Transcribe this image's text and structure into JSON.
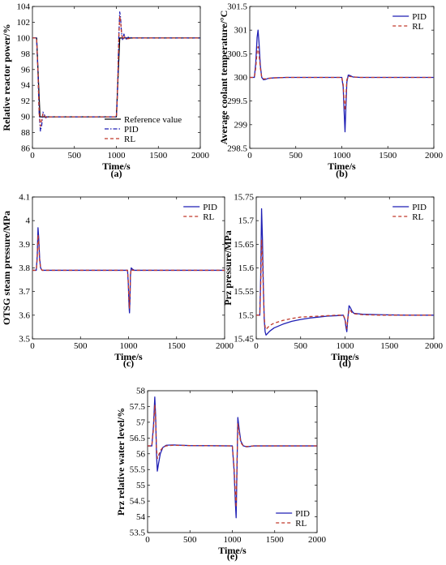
{
  "figure": {
    "panels": [
      {
        "id": "a",
        "panel_label": "(a)",
        "type": "line",
        "xlabel": "Time/s",
        "ylabel": "Relative reactor power/%",
        "xlim": [
          0,
          2000
        ],
        "ylim": [
          86,
          104
        ],
        "xticks": [
          0,
          500,
          1000,
          1500,
          2000
        ],
        "yticks": [
          86,
          88,
          90,
          92,
          94,
          96,
          98,
          100,
          102,
          104
        ],
        "ytick_decimals": 0,
        "legend": "bottom-right",
        "series": [
          {
            "name": "Reference value",
            "color": "#000000",
            "dash": "none",
            "width": 1.3,
            "x": [
              0,
              50,
              90,
              1000,
              1040,
              2000
            ],
            "y": [
              100,
              100,
              90,
              90,
              100,
              100
            ]
          },
          {
            "name": "PID",
            "color": "#1f1fb4",
            "dash": "5,2,1.5,2",
            "width": 1.3,
            "x": [
              0,
              50,
              65,
              80,
              95,
              110,
              125,
              140,
              160,
              180,
              220,
              300,
              1000,
              1010,
              1020,
              1030,
              1040,
              1050,
              1060,
              1075,
              1090,
              1110,
              1140,
              1200,
              1400,
              2000
            ],
            "y": [
              100,
              100,
              96,
              90.5,
              88.2,
              88.9,
              90.6,
              90.3,
              89.8,
              90.0,
              90.0,
              90.0,
              90.0,
              92.0,
              96.0,
              100.5,
              103.3,
              102.6,
              100.8,
              99.7,
              100.5,
              99.8,
              100.1,
              100.0,
              100.0,
              100.0
            ]
          },
          {
            "name": "RL",
            "color": "#c0392b",
            "dash": "4,3",
            "width": 1.3,
            "x": [
              0,
              50,
              65,
              80,
              95,
              110,
              125,
              145,
              170,
              220,
              300,
              1000,
              1010,
              1020,
              1030,
              1040,
              1050,
              1065,
              1080,
              1100,
              1130,
              1200,
              1400,
              2000
            ],
            "y": [
              100,
              100,
              96,
              90.5,
              88.8,
              89.6,
              90.4,
              90.1,
              89.9,
              90.0,
              90.0,
              90.0,
              92.0,
              96.0,
              100.3,
              102.8,
              102.1,
              100.3,
              99.8,
              100.2,
              99.9,
              100.0,
              100.0,
              100.0
            ]
          }
        ]
      },
      {
        "id": "b",
        "panel_label": "(b)",
        "type": "line",
        "xlabel": "Time/s",
        "ylabel": "Average coolant temperature/°C",
        "xlim": [
          0,
          2000
        ],
        "ylim": [
          298.5,
          301.5
        ],
        "xticks": [
          0,
          500,
          1000,
          1500,
          2000
        ],
        "yticks": [
          298.5,
          299,
          299.5,
          300,
          300.5,
          301,
          301.5
        ],
        "ytick_decimals": -1,
        "legend": "top-right",
        "series": [
          {
            "name": "PID",
            "color": "#1f1fb4",
            "dash": "none",
            "width": 1.3,
            "x": [
              0,
              50,
              65,
              80,
              90,
              100,
              115,
              130,
              150,
              175,
              200,
              260,
              400,
              1000,
              1015,
              1025,
              1035,
              1045,
              1055,
              1070,
              1090,
              1120,
              1200,
              1400,
              2000
            ],
            "y": [
              300,
              300,
              300.3,
              300.85,
              301.0,
              300.75,
              300.25,
              300.0,
              299.95,
              299.96,
              299.98,
              299.99,
              300.0,
              300.0,
              299.8,
              299.3,
              298.85,
              299.4,
              299.9,
              300.05,
              300.04,
              300.01,
              300.0,
              300.0,
              300.0
            ]
          },
          {
            "name": "RL",
            "color": "#c0392b",
            "dash": "4,3",
            "width": 1.3,
            "x": [
              0,
              50,
              65,
              80,
              90,
              100,
              115,
              130,
              150,
              175,
              200,
              260,
              400,
              1000,
              1015,
              1025,
              1035,
              1045,
              1055,
              1070,
              1090,
              1120,
              1200,
              1400,
              2000
            ],
            "y": [
              300,
              300,
              300.2,
              300.55,
              300.65,
              300.5,
              300.2,
              300.0,
              299.97,
              299.97,
              299.98,
              299.99,
              300.0,
              300.0,
              299.85,
              299.5,
              299.3,
              299.6,
              299.95,
              300.03,
              300.02,
              300.01,
              300.0,
              300.0,
              300.0
            ]
          }
        ]
      },
      {
        "id": "c",
        "panel_label": "(c)",
        "type": "line",
        "xlabel": "Time/s",
        "ylabel": "OTSG steam pressure/MPa",
        "xlim": [
          0,
          2000
        ],
        "ylim": [
          3.5,
          4.1
        ],
        "xticks": [
          0,
          500,
          1000,
          1500,
          2000
        ],
        "yticks": [
          3.5,
          3.6,
          3.7,
          3.8,
          3.9,
          4.0,
          4.1
        ],
        "ytick_decimals": -1,
        "legend": "top-right",
        "series": [
          {
            "name": "PID",
            "color": "#1f1fb4",
            "dash": "none",
            "width": 1.3,
            "x": [
              0,
              40,
              50,
              58,
              65,
              75,
              85,
              100,
              120,
              200,
              400,
              990,
              998,
              1005,
              1010,
              1015,
              1020,
              1028,
              1040,
              1060,
              1100,
              2000
            ],
            "y": [
              3.79,
              3.79,
              3.85,
              3.97,
              3.93,
              3.84,
              3.8,
              3.79,
              3.79,
              3.79,
              3.79,
              3.79,
              3.73,
              3.64,
              3.61,
              3.66,
              3.77,
              3.8,
              3.795,
              3.79,
              3.79,
              3.79
            ]
          },
          {
            "name": "RL",
            "color": "#c0392b",
            "dash": "4,3",
            "width": 1.3,
            "x": [
              0,
              40,
              50,
              58,
              65,
              75,
              85,
              100,
              120,
              200,
              400,
              990,
              998,
              1005,
              1010,
              1015,
              1020,
              1028,
              1040,
              1060,
              1100,
              2000
            ],
            "y": [
              3.79,
              3.79,
              3.84,
              3.94,
              3.91,
              3.83,
              3.8,
              3.79,
              3.79,
              3.79,
              3.79,
              3.79,
              3.74,
              3.66,
              3.63,
              3.68,
              3.77,
              3.795,
              3.79,
              3.79,
              3.79,
              3.79
            ]
          }
        ]
      },
      {
        "id": "d",
        "panel_label": "(d)",
        "type": "line",
        "xlabel": "Time/s",
        "ylabel": "Prz pressure/MPa",
        "xlim": [
          0,
          2000
        ],
        "ylim": [
          15.45,
          15.75
        ],
        "xticks": [
          0,
          500,
          1000,
          1500,
          2000
        ],
        "yticks": [
          15.45,
          15.5,
          15.55,
          15.6,
          15.65,
          15.7,
          15.75
        ],
        "ytick_decimals": -1,
        "legend": "top-right",
        "series": [
          {
            "name": "PID",
            "color": "#1f1fb4",
            "dash": "none",
            "width": 1.3,
            "x": [
              0,
              40,
              50,
              60,
              70,
              80,
              90,
              100,
              110,
              120,
              150,
              200,
              300,
              400,
              500,
              600,
              700,
              800,
              900,
              980,
              1000,
              1010,
              1020,
              1030,
              1045,
              1060,
              1080,
              1100,
              1200,
              1400,
              1700,
              2000
            ],
            "y": [
              15.5,
              15.5,
              15.58,
              15.725,
              15.66,
              15.56,
              15.49,
              15.465,
              15.458,
              15.46,
              15.466,
              15.473,
              15.481,
              15.487,
              15.491,
              15.494,
              15.496,
              15.498,
              15.499,
              15.5,
              15.49,
              15.475,
              15.465,
              15.49,
              15.52,
              15.516,
              15.508,
              15.504,
              15.502,
              15.501,
              15.5,
              15.5
            ]
          },
          {
            "name": "RL",
            "color": "#c0392b",
            "dash": "4,3",
            "width": 1.3,
            "x": [
              0,
              40,
              50,
              60,
              70,
              80,
              90,
              100,
              110,
              120,
              150,
              200,
              300,
              400,
              500,
              600,
              700,
              800,
              900,
              980,
              1000,
              1010,
              1020,
              1030,
              1045,
              1060,
              1080,
              1100,
              1200,
              1400,
              1700,
              2000
            ],
            "y": [
              15.5,
              15.5,
              15.56,
              15.66,
              15.62,
              15.55,
              15.495,
              15.475,
              15.47,
              15.472,
              15.478,
              15.483,
              15.489,
              15.493,
              15.496,
              15.497,
              15.498,
              15.499,
              15.5,
              15.5,
              15.492,
              15.48,
              15.472,
              15.49,
              15.512,
              15.51,
              15.505,
              15.503,
              15.501,
              15.5,
              15.5,
              15.5
            ]
          }
        ]
      },
      {
        "id": "e",
        "panel_label": "(e)",
        "type": "line",
        "xlabel": "Time/s",
        "ylabel": "Prz relative water level/%",
        "xlim": [
          0,
          2000
        ],
        "ylim": [
          53.5,
          58
        ],
        "xticks": [
          0,
          500,
          1000,
          1500,
          2000
        ],
        "yticks": [
          53.5,
          54,
          54.5,
          55,
          55.5,
          56,
          56.5,
          57,
          57.5,
          58
        ],
        "ytick_decimals": -1,
        "legend": "bottom-right",
        "series": [
          {
            "name": "PID",
            "color": "#1f1fb4",
            "dash": "none",
            "width": 1.3,
            "x": [
              0,
              50,
              70,
              85,
              95,
              105,
              115,
              130,
              150,
              180,
              220,
              300,
              500,
              1000,
              1020,
              1035,
              1045,
              1055,
              1065,
              1080,
              1100,
              1130,
              1170,
              1250,
              1500,
              2000
            ],
            "y": [
              56.25,
              56.25,
              56.9,
              57.8,
              57.2,
              56.0,
              55.45,
              55.7,
              56.0,
              56.2,
              56.27,
              56.28,
              56.26,
              56.25,
              55.5,
              54.5,
              53.97,
              55.5,
              57.15,
              56.8,
              56.4,
              56.25,
              56.22,
              56.25,
              56.25,
              56.25
            ]
          },
          {
            "name": "RL",
            "color": "#c0392b",
            "dash": "4,3",
            "width": 1.3,
            "x": [
              0,
              50,
              70,
              85,
              95,
              105,
              115,
              130,
              150,
              180,
              220,
              300,
              500,
              1000,
              1020,
              1035,
              1045,
              1055,
              1065,
              1080,
              1100,
              1130,
              1170,
              1250,
              1500,
              2000
            ],
            "y": [
              56.25,
              56.25,
              56.8,
              57.55,
              57.1,
              56.2,
              55.85,
              55.95,
              56.1,
              56.2,
              56.25,
              56.27,
              56.26,
              56.25,
              55.6,
              54.8,
              54.3,
              55.7,
              56.95,
              56.7,
              56.35,
              56.25,
              56.23,
              56.25,
              56.25,
              56.25
            ]
          }
        ]
      }
    ]
  }
}
